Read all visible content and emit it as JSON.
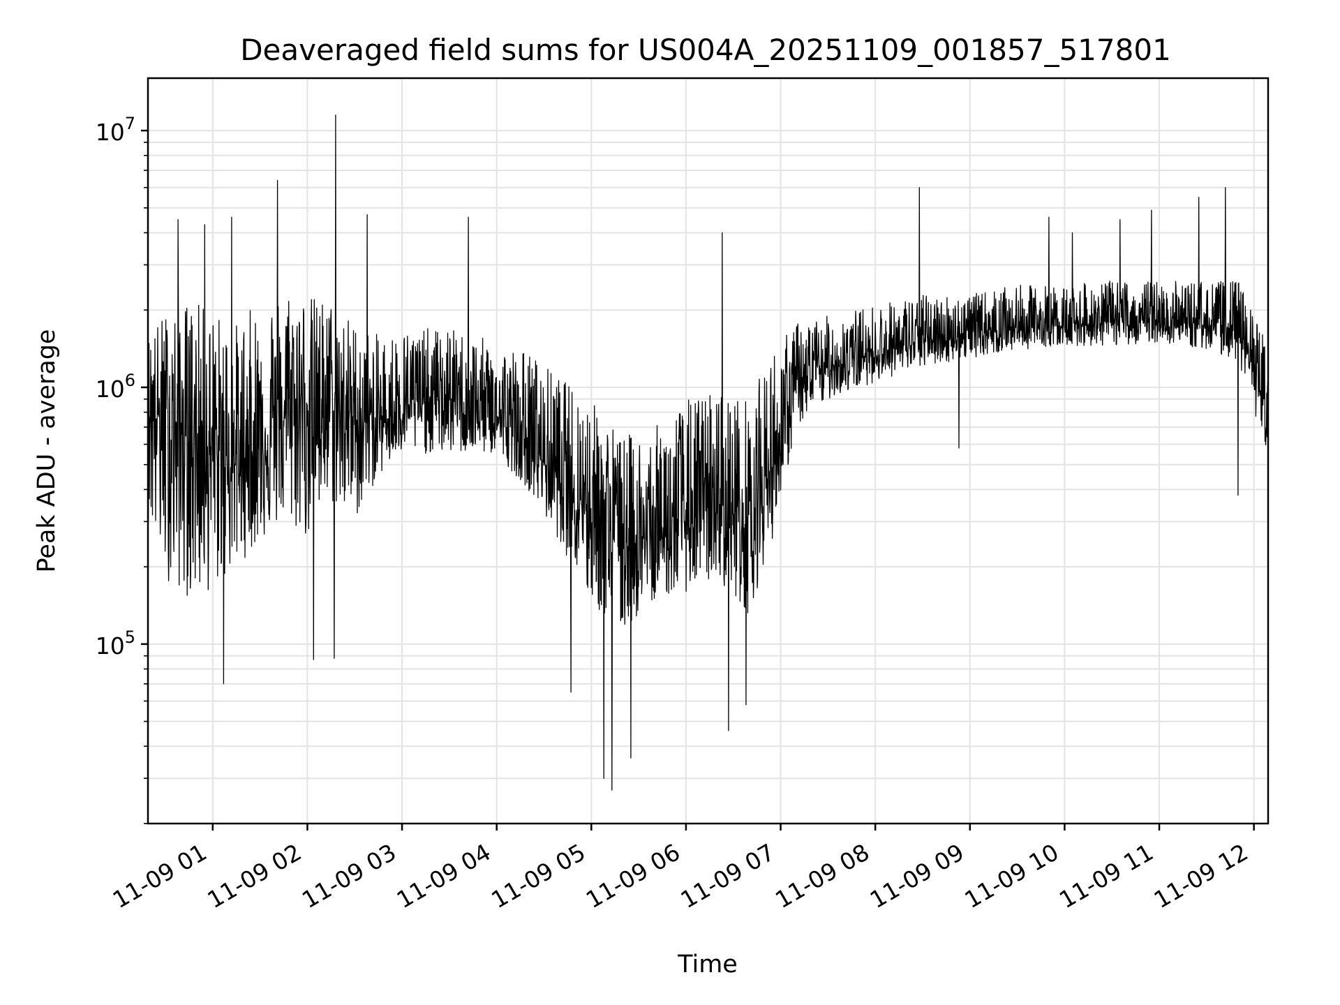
{
  "chart_data": {
    "type": "line",
    "title": "Deaveraged field sums for US004A_20251109_001857_517801",
    "xlabel": "Time",
    "ylabel": "Peak ADU - average",
    "yscale": "log",
    "grid": true,
    "xlim": [
      "2025-11-09 00:18:57",
      "2025-11-09 12:09:00"
    ],
    "ylim": [
      20000,
      16000000
    ],
    "xticks": [
      {
        "t": "2025-11-09 01:00",
        "label": "11-09 01"
      },
      {
        "t": "2025-11-09 02:00",
        "label": "11-09 02"
      },
      {
        "t": "2025-11-09 03:00",
        "label": "11-09 03"
      },
      {
        "t": "2025-11-09 04:00",
        "label": "11-09 04"
      },
      {
        "t": "2025-11-09 05:00",
        "label": "11-09 05"
      },
      {
        "t": "2025-11-09 06:00",
        "label": "11-09 06"
      },
      {
        "t": "2025-11-09 07:00",
        "label": "11-09 07"
      },
      {
        "t": "2025-11-09 08:00",
        "label": "11-09 08"
      },
      {
        "t": "2025-11-09 09:00",
        "label": "11-09 09"
      },
      {
        "t": "2025-11-09 10:00",
        "label": "11-09 10"
      },
      {
        "t": "2025-11-09 11:00",
        "label": "11-09 11"
      },
      {
        "t": "2025-11-09 12:00",
        "label": "11-09 12"
      }
    ],
    "yticks": [
      {
        "value": 100000,
        "base": "10",
        "exp": "5"
      },
      {
        "value": 1000000,
        "base": "10",
        "exp": "6"
      },
      {
        "value": 10000000,
        "base": "10",
        "exp": "7"
      }
    ],
    "series": [
      {
        "color": "#000000",
        "x": [
          "2025-11-09 00:18:57",
          "2025-11-09 00:30",
          "2025-11-09 00:45",
          "2025-11-09 01:00",
          "2025-11-09 01:15",
          "2025-11-09 01:30",
          "2025-11-09 01:45",
          "2025-11-09 02:00",
          "2025-11-09 02:15",
          "2025-11-09 02:30",
          "2025-11-09 02:45",
          "2025-11-09 03:00",
          "2025-11-09 03:30",
          "2025-11-09 04:00",
          "2025-11-09 04:20",
          "2025-11-09 04:40",
          "2025-11-09 05:00",
          "2025-11-09 05:20",
          "2025-11-09 05:40",
          "2025-11-09 06:00",
          "2025-11-09 06:20",
          "2025-11-09 06:40",
          "2025-11-09 06:55",
          "2025-11-09 07:10",
          "2025-11-09 07:30",
          "2025-11-09 08:00",
          "2025-11-09 08:30",
          "2025-11-09 09:00",
          "2025-11-09 09:30",
          "2025-11-09 10:00",
          "2025-11-09 10:30",
          "2025-11-09 11:00",
          "2025-11-09 11:30",
          "2025-11-09 11:50",
          "2025-11-09 12:09"
        ],
        "y": [
          900000,
          700000,
          650000,
          550000,
          500000,
          600000,
          750000,
          900000,
          850000,
          750000,
          700000,
          850000,
          900000,
          750000,
          600000,
          450000,
          350000,
          250000,
          250000,
          300000,
          350000,
          300000,
          500000,
          1000000,
          1200000,
          1350000,
          1500000,
          1650000,
          1700000,
          1750000,
          1800000,
          1800000,
          1750000,
          1700000,
          800000
        ],
        "band_low": [
          300000,
          180000,
          150000,
          160000,
          200000,
          250000,
          300000,
          250000,
          350000,
          300000,
          450000,
          550000,
          550000,
          550000,
          400000,
          250000,
          140000,
          110000,
          150000,
          160000,
          180000,
          130000,
          260000,
          700000,
          900000,
          1050000,
          1200000,
          1300000,
          1400000,
          1450000,
          1450000,
          1500000,
          1400000,
          1250000,
          550000
        ],
        "band_high": [
          1600000,
          2000000,
          2200000,
          2000000,
          1800000,
          2200000,
          2600000,
          2300000,
          2200000,
          1800000,
          1600000,
          1700000,
          1700000,
          1500000,
          1400000,
          1100000,
          900000,
          650000,
          700000,
          900000,
          1000000,
          900000,
          1400000,
          1800000,
          1900000,
          2100000,
          2300000,
          2300000,
          2500000,
          2500000,
          2600000,
          2600000,
          2600000,
          2600000,
          1500000
        ],
        "spikes": [
          {
            "t": "2025-11-09 00:38",
            "y": 4500000
          },
          {
            "t": "2025-11-09 00:55",
            "y": 4300000
          },
          {
            "t": "2025-11-09 01:12",
            "y": 4600000
          },
          {
            "t": "2025-11-09 01:41",
            "y": 6400000
          },
          {
            "t": "2025-11-09 02:18",
            "y": 11500000
          },
          {
            "t": "2025-11-09 02:38",
            "y": 4700000
          },
          {
            "t": "2025-11-09 03:42",
            "y": 4600000
          },
          {
            "t": "2025-11-09 06:23",
            "y": 4000000
          },
          {
            "t": "2025-11-09 08:28",
            "y": 6000000
          },
          {
            "t": "2025-11-09 09:50",
            "y": 4600000
          },
          {
            "t": "2025-11-09 10:05",
            "y": 4000000
          },
          {
            "t": "2025-11-09 10:35",
            "y": 4500000
          },
          {
            "t": "2025-11-09 10:55",
            "y": 4900000
          },
          {
            "t": "2025-11-09 11:25",
            "y": 5500000
          },
          {
            "t": "2025-11-09 11:42",
            "y": 6000000
          },
          {
            "t": "2025-11-09 01:07",
            "y": 70000
          },
          {
            "t": "2025-11-09 02:04",
            "y": 87000
          },
          {
            "t": "2025-11-09 02:17",
            "y": 88000
          },
          {
            "t": "2025-11-09 04:47",
            "y": 65000
          },
          {
            "t": "2025-11-09 05:08",
            "y": 30000
          },
          {
            "t": "2025-11-09 05:13",
            "y": 27000
          },
          {
            "t": "2025-11-09 05:25",
            "y": 36000
          },
          {
            "t": "2025-11-09 06:27",
            "y": 46000
          },
          {
            "t": "2025-11-09 06:38",
            "y": 58000
          },
          {
            "t": "2025-11-09 08:53",
            "y": 580000
          },
          {
            "t": "2025-11-09 11:50",
            "y": 380000
          }
        ]
      }
    ]
  }
}
